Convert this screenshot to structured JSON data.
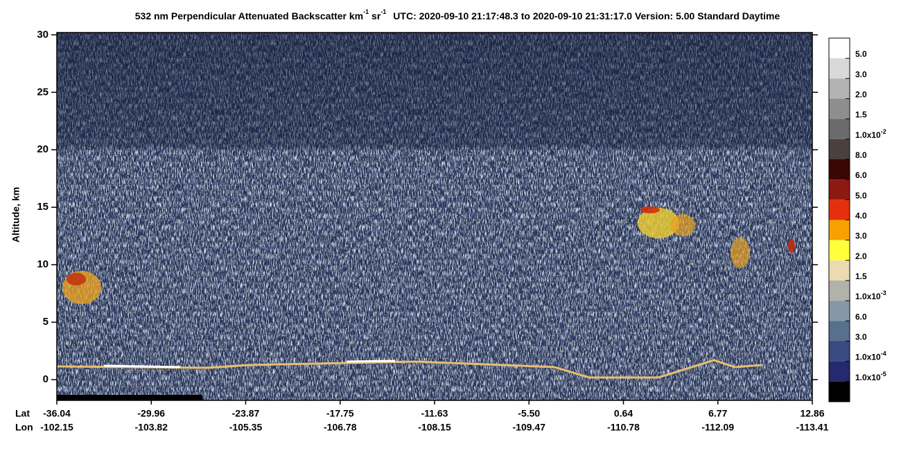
{
  "chart_data": {
    "type": "heatmap",
    "title_parts": [
      "532 nm Perpendicular Attenuated Backscatter km",
      "-1",
      " sr",
      "-1",
      "UTC: 2020-09-10 21:17:48.3 to 2020-09-10 21:31:17.0  Version: 5.00 Standard Daytime"
    ],
    "ylabel": "Altitude, km",
    "ylim": [
      -1.8,
      30.2
    ],
    "yticks": [
      0,
      5,
      10,
      15,
      20,
      25,
      30
    ],
    "x_row_names": [
      "Lat",
      "Lon"
    ],
    "lat": [
      "-36.04",
      "-29.96",
      "-23.87",
      "-17.75",
      "-11.63",
      "-5.50",
      "0.64",
      "6.77",
      "12.86"
    ],
    "lon": [
      "-102.15",
      "-103.82",
      "-105.35",
      "-106.78",
      "-108.15",
      "-109.47",
      "-110.78",
      "-112.09",
      "-113.41"
    ],
    "colorbar": {
      "colors": [
        "#ffffff",
        "#d9d9d9",
        "#b3b3b3",
        "#8e8e8e",
        "#6b6b6b",
        "#4a403e",
        "#3a0606",
        "#8c1a12",
        "#e4300c",
        "#f7a100",
        "#ffff3c",
        "#eadbb0",
        "#b2b2aa",
        "#8697a8",
        "#56708e",
        "#394a82",
        "#262870",
        "#000000"
      ],
      "labels": [
        {
          "base": "5.0"
        },
        {
          "base": "3.0"
        },
        {
          "base": "2.0"
        },
        {
          "base": "1.5"
        },
        {
          "base": "1.0x10",
          "exp": "-2"
        },
        {
          "base": "8.0"
        },
        {
          "base": "6.0"
        },
        {
          "base": "5.0"
        },
        {
          "base": "4.0"
        },
        {
          "base": "3.0"
        },
        {
          "base": "2.0"
        },
        {
          "base": "1.5"
        },
        {
          "base": "1.0x10",
          "exp": "-3"
        },
        {
          "base": "6.0"
        },
        {
          "base": "3.0"
        },
        {
          "base": "1.0x10",
          "exp": "-4"
        },
        {
          "base": "1.0x10",
          "exp": "-5"
        }
      ]
    }
  }
}
